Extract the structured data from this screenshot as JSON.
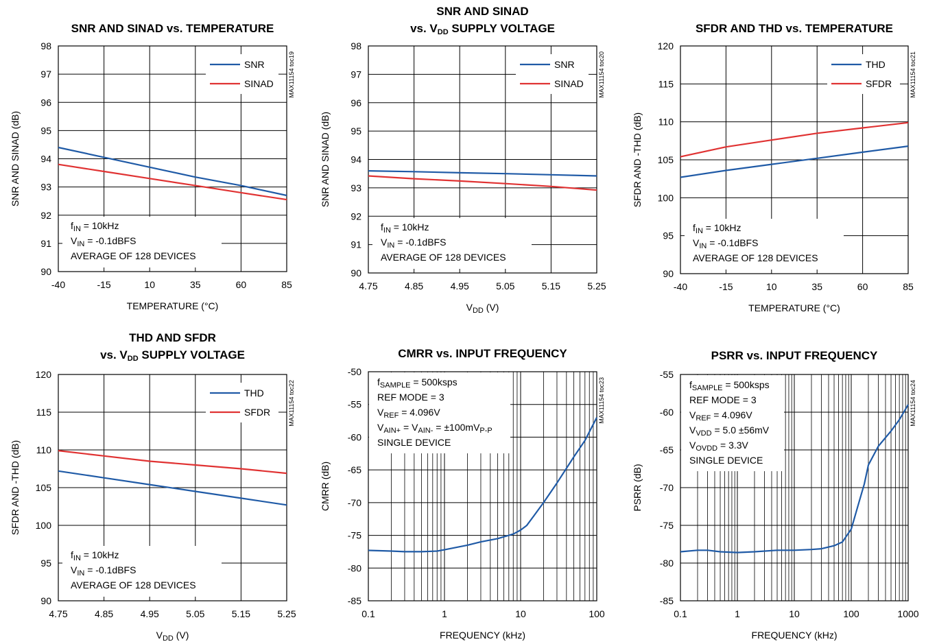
{
  "colors": {
    "blue": "#1f5aa6",
    "red": "#e03232"
  },
  "chart_data": [
    {
      "id": "toc19",
      "type": "line",
      "scale": "linear",
      "title_lines": [
        "SNR AND SINAD vs. TEMPERATURE"
      ],
      "xlabel": "TEMPERATURE (°C)",
      "ylabel": "SNR AND SINAD (dB)",
      "code": "MAX11154 toc19",
      "xlim": [
        -40,
        85
      ],
      "ylim": [
        90,
        98
      ],
      "xticks": [
        -40,
        -15,
        10,
        35,
        60,
        85
      ],
      "xtick_labels": [
        "-40",
        "-15",
        "10",
        "35",
        "60",
        "85"
      ],
      "yticks": [
        90,
        91,
        92,
        93,
        94,
        95,
        96,
        97,
        98
      ],
      "ytick_labels": [
        "90",
        "91",
        "92",
        "93",
        "94",
        "95",
        "96",
        "97",
        "98"
      ],
      "series": [
        {
          "name": "SNR",
          "color": "blue",
          "x": [
            -40,
            -15,
            10,
            35,
            60,
            85
          ],
          "y": [
            94.4,
            94.05,
            93.7,
            93.35,
            93.05,
            92.7
          ]
        },
        {
          "name": "SINAD",
          "color": "red",
          "x": [
            -40,
            -15,
            10,
            35,
            60,
            85
          ],
          "y": [
            93.8,
            93.55,
            93.3,
            93.05,
            92.8,
            92.55
          ]
        }
      ],
      "legend": "top-right",
      "annotations": [
        [
          {
            "t": "f"
          },
          {
            "t": "IN",
            "sub": true
          },
          {
            "t": " = 10kHz"
          }
        ],
        [
          {
            "t": "V"
          },
          {
            "t": "IN",
            "sub": true
          },
          {
            "t": " = -0.1dBFS"
          }
        ],
        [
          {
            "t": "AVERAGE OF 128 DEVICES"
          }
        ]
      ],
      "annotation_place": "bottom-left"
    },
    {
      "id": "toc20",
      "type": "line",
      "scale": "linear",
      "title_lines": [
        "SNR AND SINAD",
        "vs. VDD SUPPLY VOLTAGE"
      ],
      "xlabel": "VDD (V)",
      "ylabel": "SNR AND SINAD (dB)",
      "code": "MAX11154 toc20",
      "xlim": [
        4.75,
        5.25
      ],
      "ylim": [
        90,
        98
      ],
      "xticks": [
        4.75,
        4.85,
        4.95,
        5.05,
        5.15,
        5.25
      ],
      "xtick_labels": [
        "4.75",
        "4.85",
        "4.95",
        "5.05",
        "5.15",
        "5.25"
      ],
      "yticks": [
        90,
        91,
        92,
        93,
        94,
        95,
        96,
        97,
        98
      ],
      "ytick_labels": [
        "90",
        "91",
        "92",
        "93",
        "94",
        "95",
        "96",
        "97",
        "98"
      ],
      "series": [
        {
          "name": "SNR",
          "color": "blue",
          "x": [
            4.75,
            4.85,
            4.95,
            5.05,
            5.15,
            5.25
          ],
          "y": [
            93.6,
            93.57,
            93.53,
            93.5,
            93.46,
            93.42
          ]
        },
        {
          "name": "SINAD",
          "color": "red",
          "x": [
            4.75,
            4.85,
            4.95,
            5.05,
            5.15,
            5.25
          ],
          "y": [
            93.42,
            93.32,
            93.24,
            93.15,
            93.05,
            92.92
          ]
        }
      ],
      "legend": "top-right",
      "annotations": [
        [
          {
            "t": "f"
          },
          {
            "t": "IN",
            "sub": true
          },
          {
            "t": " = 10kHz"
          }
        ],
        [
          {
            "t": "V"
          },
          {
            "t": "IN",
            "sub": true
          },
          {
            "t": " = -0.1dBFS"
          }
        ],
        [
          {
            "t": "AVERAGE OF 128 DEVICES"
          }
        ]
      ],
      "annotation_place": "bottom-left"
    },
    {
      "id": "toc21",
      "type": "line",
      "scale": "linear",
      "title_lines": [
        "SFDR AND THD vs. TEMPERATURE"
      ],
      "xlabel": "TEMPERATURE (°C)",
      "ylabel": "SFDR AND -THD (dB)",
      "code": "MAX11154 toc21",
      "xlim": [
        -40,
        85
      ],
      "ylim": [
        90,
        120
      ],
      "xticks": [
        -40,
        -15,
        10,
        35,
        60,
        85
      ],
      "xtick_labels": [
        "-40",
        "-15",
        "10",
        "35",
        "60",
        "85"
      ],
      "yticks": [
        90,
        95,
        100,
        105,
        110,
        115,
        120
      ],
      "ytick_labels": [
        "90",
        "95",
        "100",
        "105",
        "110",
        "115",
        "120"
      ],
      "series": [
        {
          "name": "THD",
          "color": "blue",
          "x": [
            -40,
            -15,
            10,
            35,
            60,
            85
          ],
          "y": [
            102.7,
            103.6,
            104.4,
            105.2,
            106.0,
            106.8
          ]
        },
        {
          "name": "SFDR",
          "color": "red",
          "x": [
            -40,
            -15,
            10,
            35,
            60,
            85
          ],
          "y": [
            105.4,
            106.7,
            107.6,
            108.5,
            109.2,
            109.9
          ]
        }
      ],
      "legend": "top-right",
      "annotations": [
        [
          {
            "t": "f"
          },
          {
            "t": "IN",
            "sub": true
          },
          {
            "t": " = 10kHz"
          }
        ],
        [
          {
            "t": "V"
          },
          {
            "t": "IN",
            "sub": true
          },
          {
            "t": " = -0.1dBFS"
          }
        ],
        [
          {
            "t": "AVERAGE OF 128 DEVICES"
          }
        ]
      ],
      "annotation_place": "bottom-left"
    },
    {
      "id": "toc22",
      "type": "line",
      "scale": "linear",
      "title_lines": [
        "THD AND SFDR",
        "vs. VDD SUPPLY VOLTAGE"
      ],
      "xlabel": "VDD (V)",
      "ylabel": "SFDR AND -THD (dB)",
      "code": "MAX11154 toc22",
      "xlim": [
        4.75,
        5.25
      ],
      "ylim": [
        90,
        120
      ],
      "xticks": [
        4.75,
        4.85,
        4.95,
        5.05,
        5.15,
        5.25
      ],
      "xtick_labels": [
        "4.75",
        "4.85",
        "4.95",
        "5.05",
        "5.15",
        "5.25"
      ],
      "yticks": [
        90,
        95,
        100,
        105,
        110,
        115,
        120
      ],
      "ytick_labels": [
        "90",
        "95",
        "100",
        "105",
        "110",
        "115",
        "120"
      ],
      "series": [
        {
          "name": "THD",
          "color": "blue",
          "x": [
            4.75,
            4.85,
            4.95,
            5.05,
            5.15,
            5.25
          ],
          "y": [
            107.2,
            106.3,
            105.4,
            104.5,
            103.6,
            102.7
          ]
        },
        {
          "name": "SFDR",
          "color": "red",
          "x": [
            4.75,
            4.85,
            4.95,
            5.05,
            5.15,
            5.25
          ],
          "y": [
            109.9,
            109.2,
            108.5,
            108.0,
            107.5,
            106.9
          ]
        }
      ],
      "legend": "top-right",
      "annotations": [
        [
          {
            "t": "f"
          },
          {
            "t": "IN",
            "sub": true
          },
          {
            "t": " = 10kHz"
          }
        ],
        [
          {
            "t": "V"
          },
          {
            "t": "IN",
            "sub": true
          },
          {
            "t": " = -0.1dBFS"
          }
        ],
        [
          {
            "t": "AVERAGE OF 128 DEVICES"
          }
        ]
      ],
      "annotation_place": "bottom-left"
    },
    {
      "id": "toc23",
      "type": "line",
      "scale": "log",
      "title_lines": [
        "CMRR vs. INPUT FREQUENCY"
      ],
      "xlabel": "FREQUENCY (kHz)",
      "ylabel": "CMRR (dB)",
      "code": "MAX11154 toc23",
      "xlim": [
        0.1,
        100
      ],
      "ylim": [
        -85,
        -50
      ],
      "xticks": [
        0.1,
        1,
        10,
        100
      ],
      "xtick_labels": [
        "0.1",
        "1",
        "10",
        "100"
      ],
      "yticks": [
        -85,
        -80,
        -75,
        -70,
        -65,
        -60,
        -55,
        -50
      ],
      "ytick_labels": [
        "-85",
        "-80",
        "-75",
        "-70",
        "-65",
        "-60",
        "-55",
        "-50"
      ],
      "series": [
        {
          "name": "",
          "color": "blue",
          "x": [
            0.1,
            0.2,
            0.3,
            0.5,
            0.8,
            1,
            1.5,
            2,
            3,
            5,
            8,
            10,
            12,
            15,
            20,
            30,
            50,
            70,
            100
          ],
          "y": [
            -77.3,
            -77.4,
            -77.5,
            -77.5,
            -77.4,
            -77.2,
            -76.8,
            -76.5,
            -76.0,
            -75.5,
            -74.8,
            -74.2,
            -73.5,
            -72.0,
            -70.0,
            -67.0,
            -63.0,
            -60.5,
            -57.0
          ]
        }
      ],
      "legend": "none",
      "annotations": [
        [
          {
            "t": "f"
          },
          {
            "t": "SAMPLE",
            "sub": true
          },
          {
            "t": " = 500ksps"
          }
        ],
        [
          {
            "t": "REF MODE = 3"
          }
        ],
        [
          {
            "t": "V"
          },
          {
            "t": "REF",
            "sub": true
          },
          {
            "t": " = 4.096V"
          }
        ],
        [
          {
            "t": "V"
          },
          {
            "t": "AIN+",
            "sub": true
          },
          {
            "t": " = V"
          },
          {
            "t": "AIN-",
            "sub": true
          },
          {
            "t": " = ±100mV"
          },
          {
            "t": "P-P",
            "sub": true
          }
        ],
        [
          {
            "t": "SINGLE DEVICE"
          }
        ]
      ],
      "annotation_place": "top-left"
    },
    {
      "id": "toc24",
      "type": "line",
      "scale": "log",
      "title_lines": [
        "PSRR vs. INPUT FREQUENCY"
      ],
      "xlabel": "FREQUENCY (kHz)",
      "ylabel": "PSRR (dB)",
      "code": "MAX11154 toc24",
      "xlim": [
        0.1,
        1000
      ],
      "ylim": [
        -85,
        -55
      ],
      "xticks": [
        0.1,
        1,
        10,
        100,
        1000
      ],
      "xtick_labels": [
        "0.1",
        "1",
        "10",
        "100",
        "1000"
      ],
      "yticks": [
        -85,
        -80,
        -75,
        -70,
        -65,
        -60,
        -55
      ],
      "ytick_labels": [
        "-85",
        "-80",
        "-75",
        "-70",
        "-65",
        "-60",
        "-55"
      ],
      "series": [
        {
          "name": "",
          "color": "blue",
          "x": [
            0.1,
            0.2,
            0.3,
            0.5,
            1,
            2,
            5,
            10,
            20,
            30,
            50,
            70,
            100,
            130,
            170,
            200,
            300,
            500,
            700,
            1000
          ],
          "y": [
            -78.5,
            -78.3,
            -78.3,
            -78.5,
            -78.6,
            -78.5,
            -78.3,
            -78.3,
            -78.2,
            -78.1,
            -77.7,
            -77.2,
            -75.5,
            -72.5,
            -69.5,
            -67.0,
            -64.5,
            -62.5,
            -61.0,
            -59.0
          ]
        }
      ],
      "legend": "none",
      "annotations": [
        [
          {
            "t": "f"
          },
          {
            "t": "SAMPLE",
            "sub": true
          },
          {
            "t": " = 500ksps"
          }
        ],
        [
          {
            "t": "REF MODE = 3"
          }
        ],
        [
          {
            "t": "V"
          },
          {
            "t": "REF",
            "sub": true
          },
          {
            "t": " = 4.096V"
          }
        ],
        [
          {
            "t": "V"
          },
          {
            "t": "VDD",
            "sub": true
          },
          {
            "t": " = 5.0 ±56mV"
          }
        ],
        [
          {
            "t": "V"
          },
          {
            "t": "OVDD",
            "sub": true
          },
          {
            "t": " = 3.3V"
          }
        ],
        [
          {
            "t": "SINGLE DEVICE"
          }
        ]
      ],
      "annotation_place": "top-left"
    }
  ]
}
